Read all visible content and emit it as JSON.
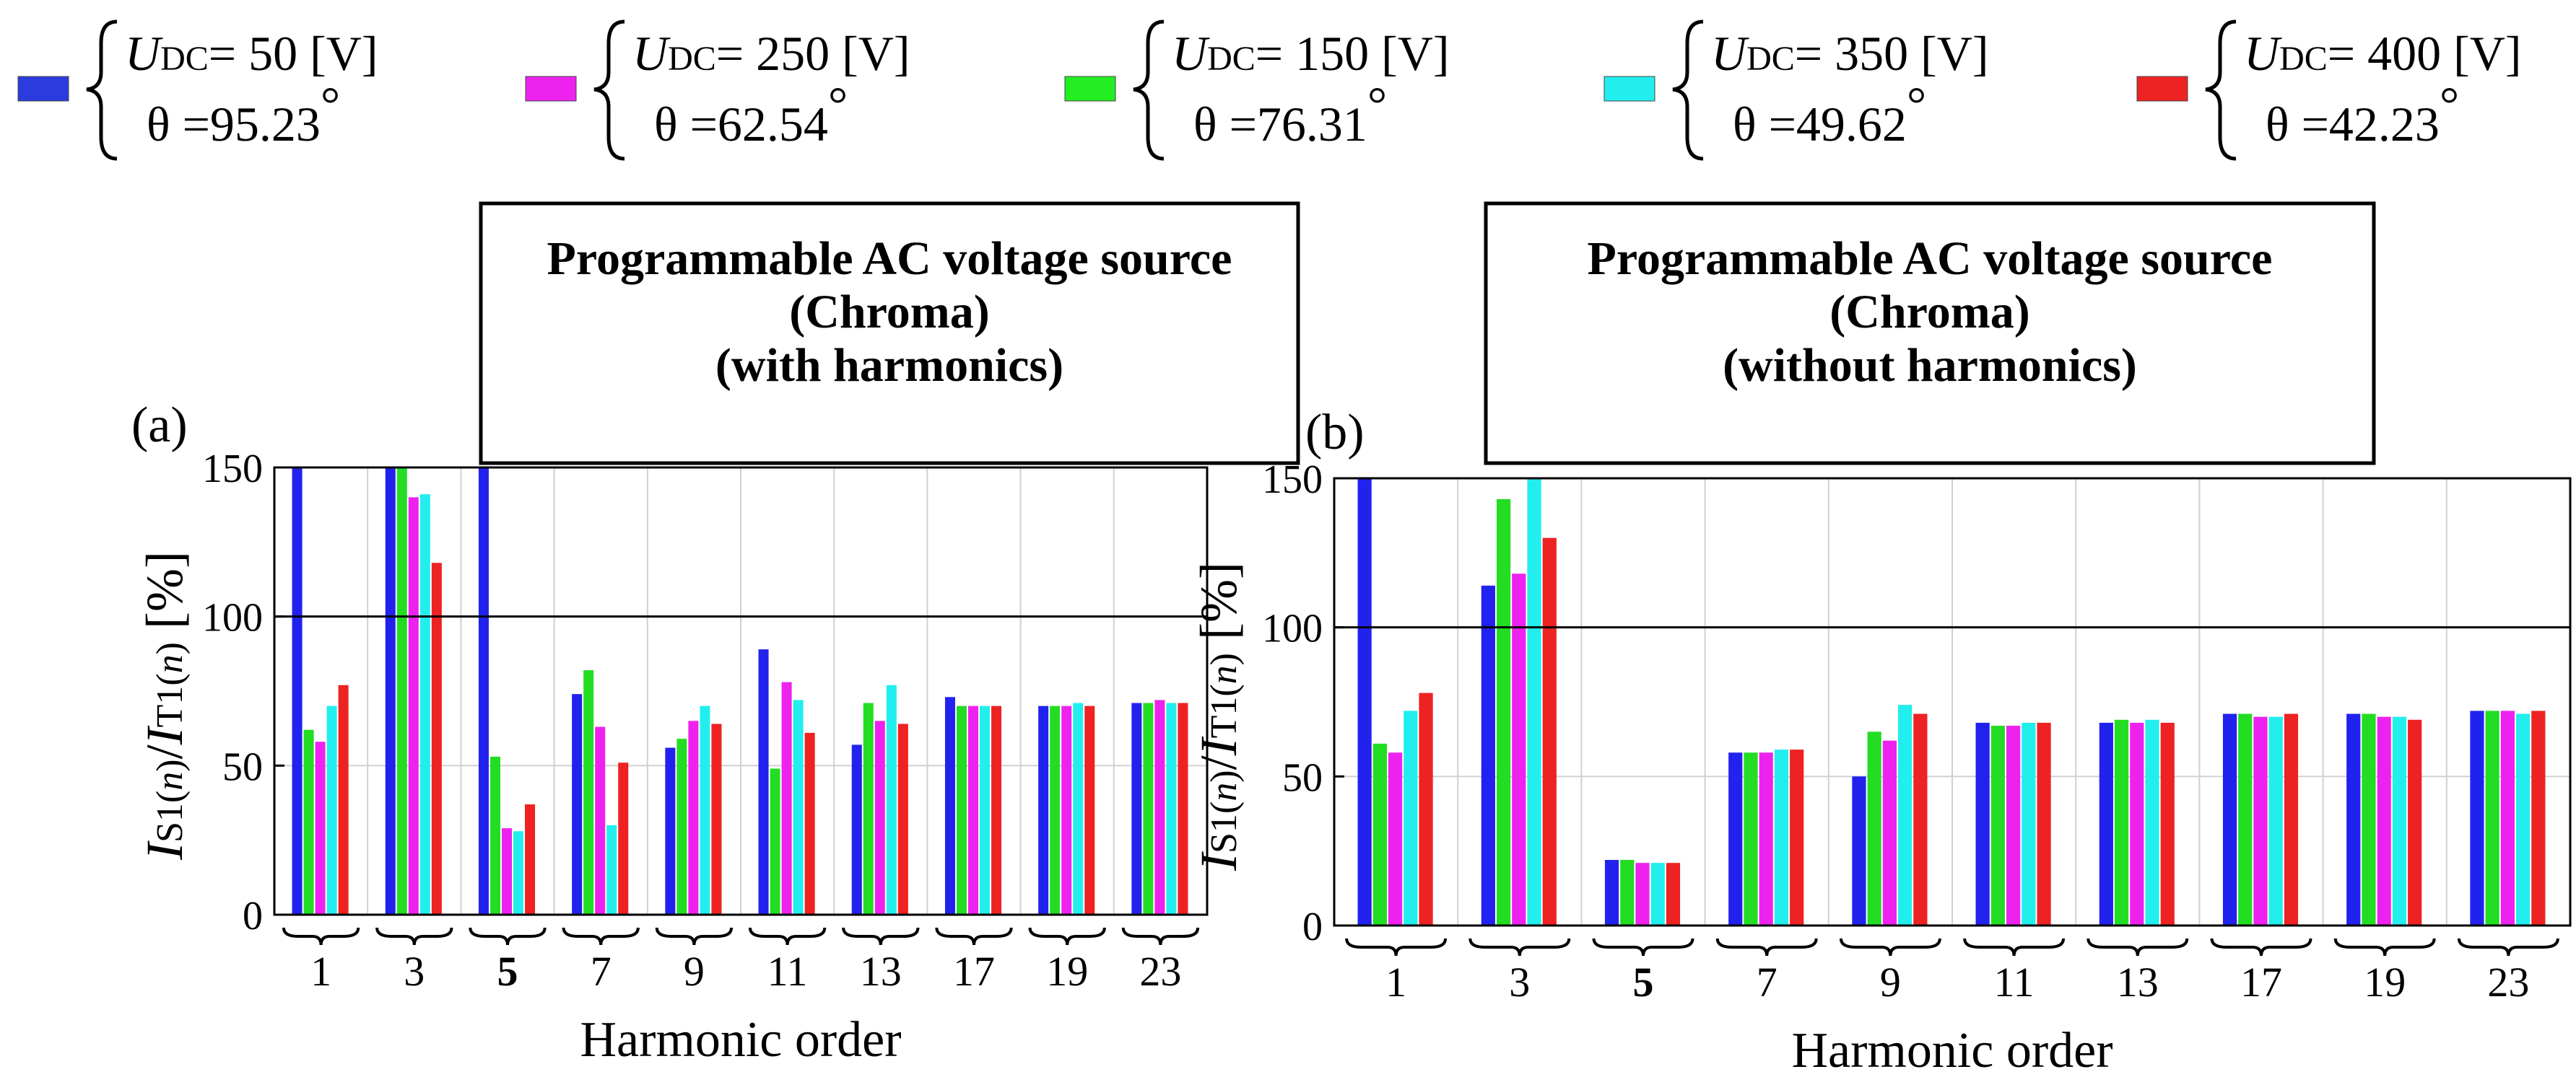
{
  "legend": {
    "unit": "[V]",
    "items": [
      {
        "name": "s50",
        "color": "#2b3be0",
        "udc_label": "U",
        "udc_sub": "DC",
        "udc_value": "50",
        "theta_symbol": "θ",
        "theta_value": "95.23",
        "deg": "°"
      },
      {
        "name": "s250",
        "color": "#ee22ee",
        "udc_label": "U",
        "udc_sub": "DC",
        "udc_value": "250",
        "theta_symbol": "θ",
        "theta_value": "62.54",
        "deg": "°"
      },
      {
        "name": "s150",
        "color": "#22ee22",
        "udc_label": "U",
        "udc_sub": "DC",
        "udc_value": "150",
        "theta_symbol": "θ",
        "theta_value": "76.31",
        "deg": "°"
      },
      {
        "name": "s350",
        "color": "#22eeee",
        "udc_label": "U",
        "udc_sub": "DC",
        "udc_value": "350",
        "theta_symbol": "θ",
        "theta_value": "49.62",
        "deg": "°"
      },
      {
        "name": "s400",
        "color": "#ee2222",
        "udc_label": "U",
        "udc_sub": "DC",
        "udc_value": "400",
        "theta_symbol": "θ",
        "theta_value": "42.23",
        "deg": "°"
      }
    ]
  },
  "ylabel": {
    "i": "I",
    "s_sub": "S1(",
    "n": "n",
    "close": ")",
    "slash": "/",
    "t_sub": "T1(",
    "unit": "[%]"
  },
  "chart_data": [
    {
      "type": "bar",
      "panel_label": "(a)",
      "title": [
        "Programmable AC voltage source",
        "(Chroma)",
        "(with harmonics)"
      ],
      "xlabel": "Harmonic order",
      "ylabel": "IS1(n)/IT1(n) [%]",
      "ylim": [
        0,
        150
      ],
      "yticks": [
        0,
        50,
        100,
        150
      ],
      "reference_line": 100,
      "categories": [
        "1",
        "3",
        "5",
        "7",
        "9",
        "11",
        "13",
        "17",
        "19",
        "23"
      ],
      "bold_category": "5",
      "series": [
        {
          "name": "UDC=50 [V]",
          "values": [
            150,
            150,
            150,
            74,
            56,
            89,
            57,
            73,
            70,
            71
          ]
        },
        {
          "name": "UDC=150 [V]",
          "values": [
            62,
            150,
            53,
            82,
            59,
            49,
            71,
            70,
            70,
            71
          ]
        },
        {
          "name": "UDC=250 [V]",
          "values": [
            58,
            140,
            29,
            63,
            65,
            78,
            65,
            70,
            70,
            72
          ]
        },
        {
          "name": "UDC=350 [V]",
          "values": [
            70,
            141,
            28,
            30,
            70,
            72,
            77,
            70,
            71,
            71
          ]
        },
        {
          "name": "UDC=400 [V]",
          "values": [
            77,
            118,
            37,
            51,
            64,
            61,
            64,
            70,
            70,
            71
          ]
        }
      ]
    },
    {
      "type": "bar",
      "panel_label": "(b)",
      "title": [
        "Programmable AC voltage source",
        "(Chroma)",
        "(without harmonics)"
      ],
      "xlabel": "Harmonic order",
      "ylabel": "IS1(n)/IT1(n) [%]",
      "ylim": [
        0,
        150
      ],
      "yticks": [
        0,
        50,
        100,
        150
      ],
      "reference_line": 100,
      "categories": [
        "1",
        "3",
        "5",
        "7",
        "9",
        "11",
        "13",
        "17",
        "19",
        "23"
      ],
      "bold_category": "5",
      "series": [
        {
          "name": "UDC=50 [V]",
          "values": [
            150,
            114,
            22,
            58,
            50,
            68,
            68,
            71,
            71,
            72
          ]
        },
        {
          "name": "UDC=150 [V]",
          "values": [
            61,
            143,
            22,
            58,
            65,
            67,
            69,
            71,
            71,
            72
          ]
        },
        {
          "name": "UDC=250 [V]",
          "values": [
            58,
            118,
            21,
            58,
            62,
            67,
            68,
            70,
            70,
            72
          ]
        },
        {
          "name": "UDC=350 [V]",
          "values": [
            72,
            150,
            21,
            59,
            74,
            68,
            69,
            70,
            70,
            71
          ]
        },
        {
          "name": "UDC=400 [V]",
          "values": [
            78,
            130,
            21,
            59,
            71,
            68,
            68,
            71,
            69,
            72
          ]
        }
      ]
    }
  ]
}
